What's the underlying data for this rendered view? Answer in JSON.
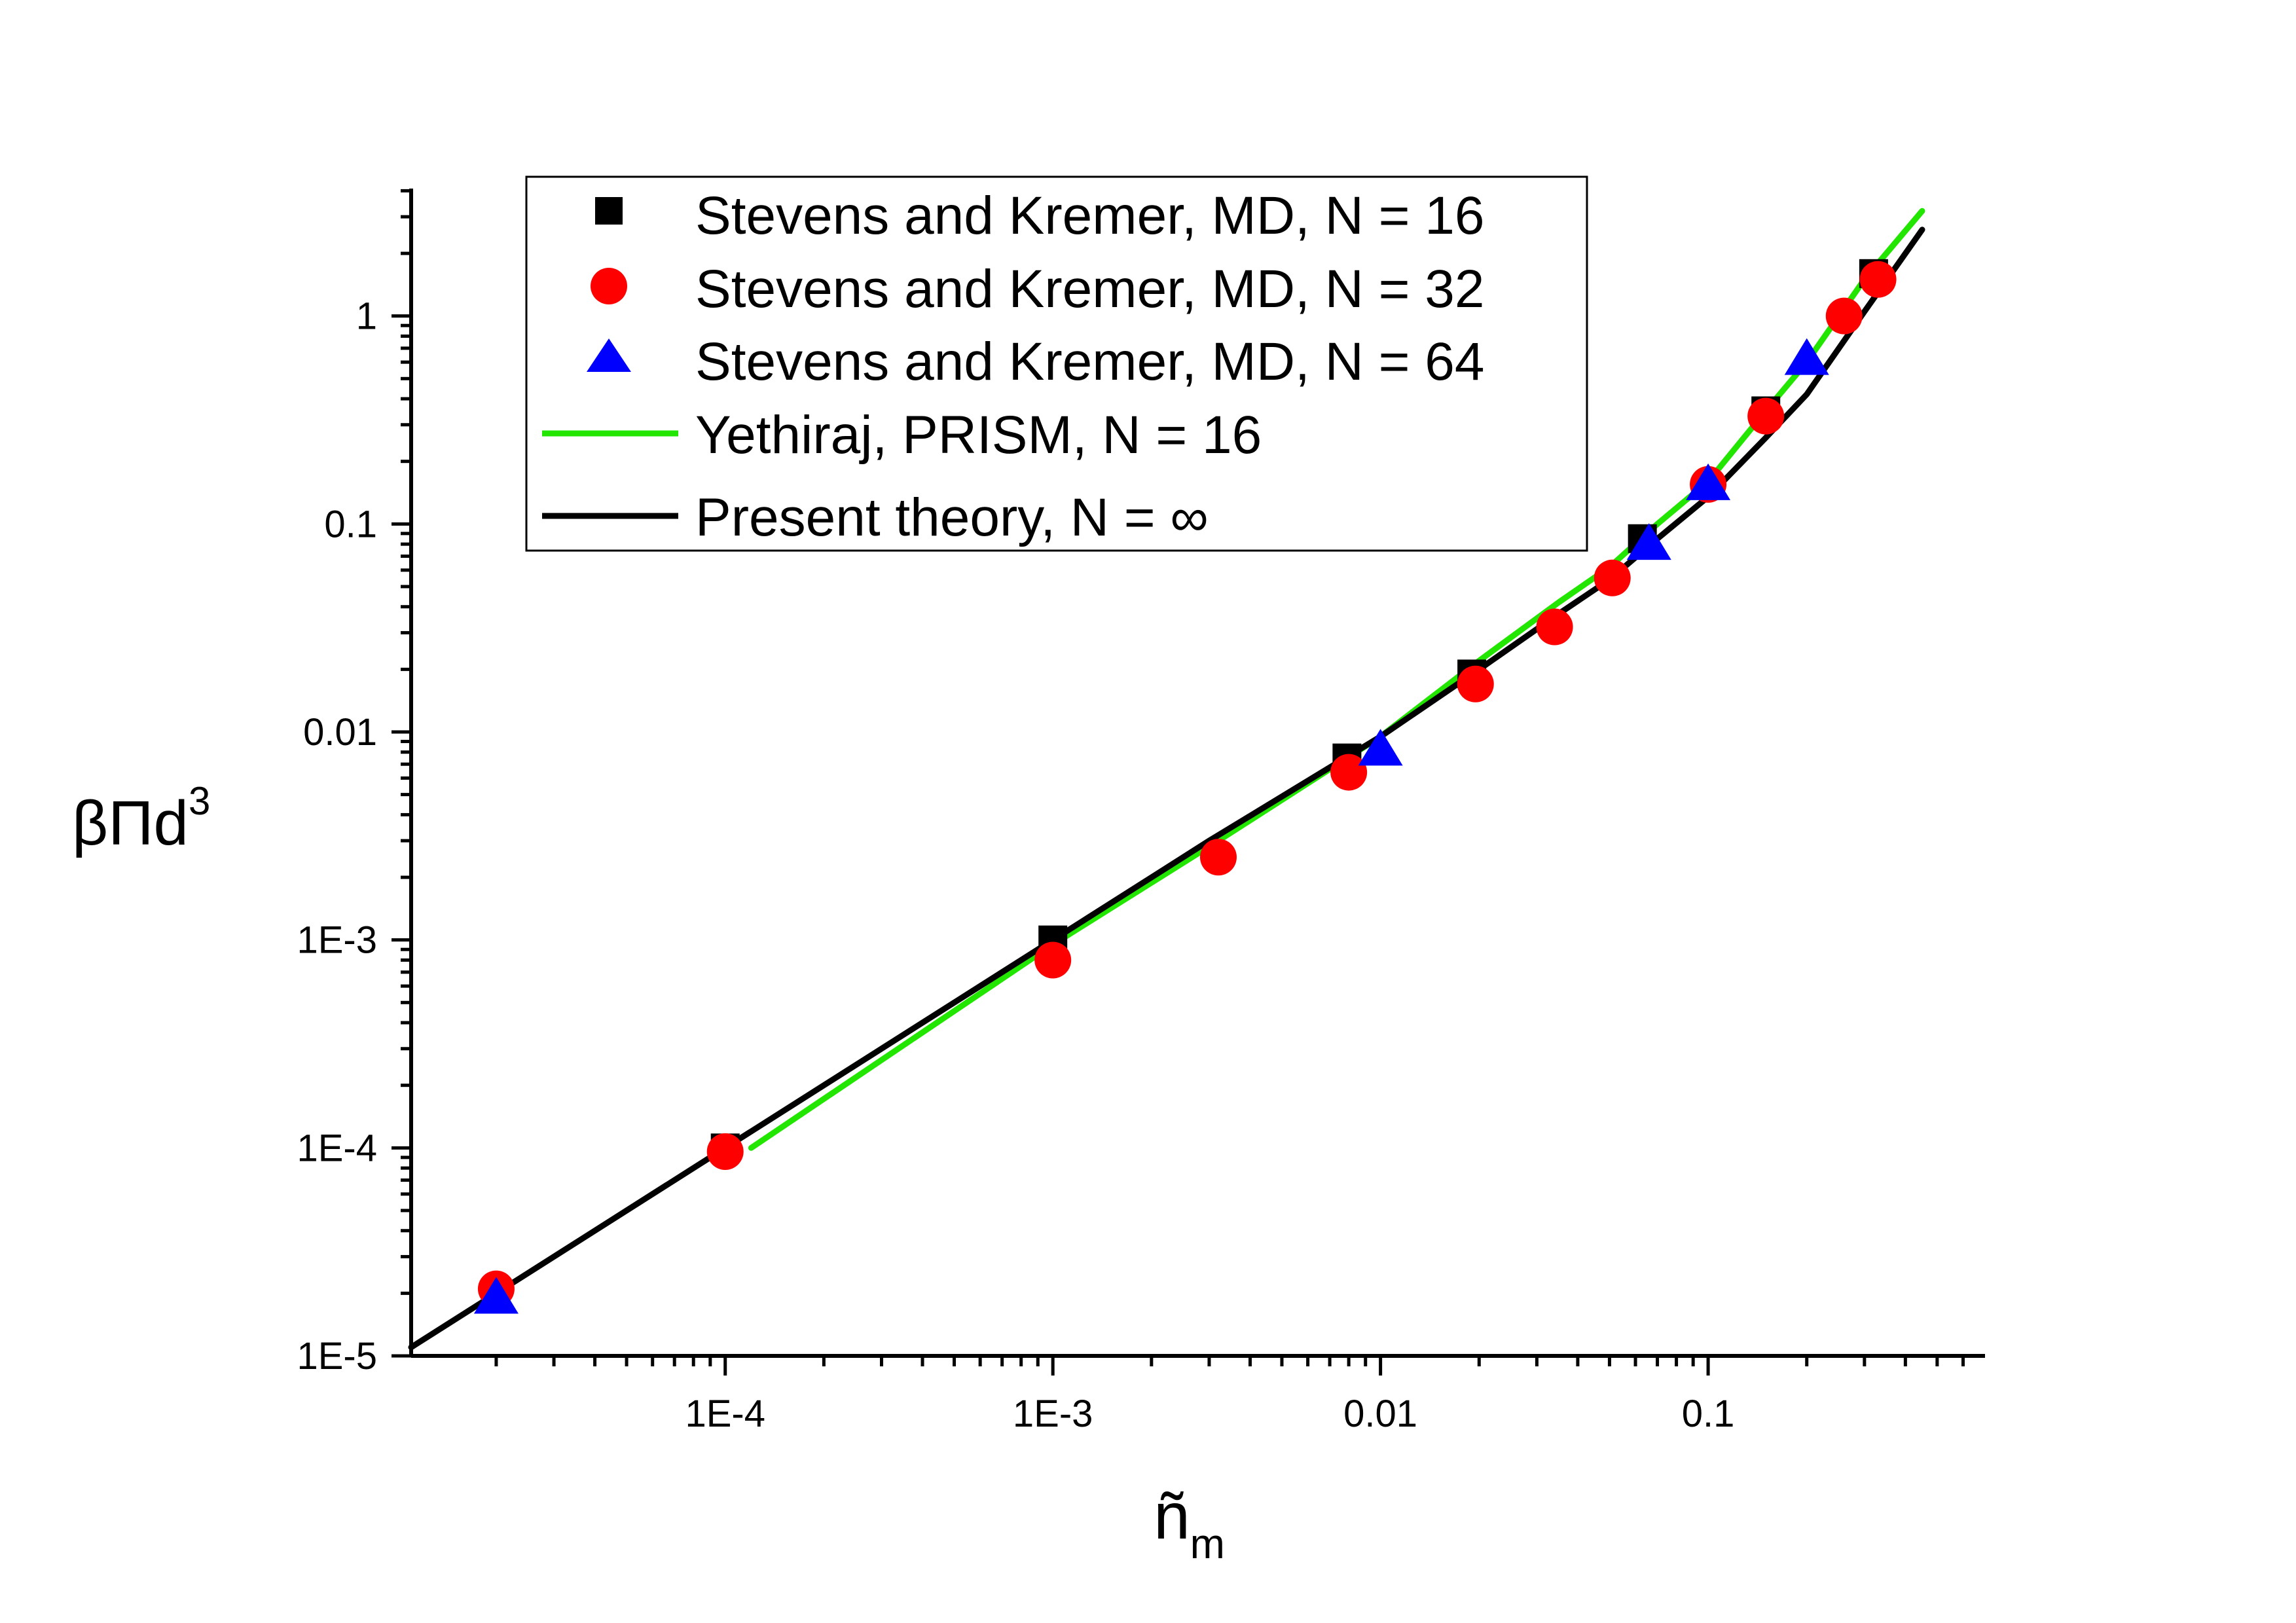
{
  "chart_data": {
    "type": "scatter",
    "xscale": "log",
    "yscale": "log",
    "xlim": [
      1.1e-05,
      0.7
    ],
    "ylim": [
      1e-05,
      4.1
    ],
    "xlabel": {
      "main": "ñ",
      "sub": "m"
    },
    "ylabel": {
      "main": "βΠd",
      "sup": "3"
    },
    "x_ticks": [
      {
        "value": 0.0001,
        "label": "1E-4"
      },
      {
        "value": 0.001,
        "label": "1E-3"
      },
      {
        "value": 0.01,
        "label": "0.01"
      },
      {
        "value": 0.1,
        "label": "0.1"
      }
    ],
    "y_ticks": [
      {
        "value": 1e-05,
        "label": "1E-5"
      },
      {
        "value": 0.0001,
        "label": "1E-4"
      },
      {
        "value": 0.001,
        "label": "1E-3"
      },
      {
        "value": 0.01,
        "label": "0.01"
      },
      {
        "value": 0.1,
        "label": "0.1"
      },
      {
        "value": 1,
        "label": "1"
      }
    ],
    "legend_position": "top-left",
    "series": [
      {
        "name": "Stevens and Kremer, MD, N = 16",
        "kind": "marker",
        "marker": "square",
        "color": "#000000",
        "points": [
          [
            0.0001,
            0.0001
          ],
          [
            0.001,
            0.001
          ],
          [
            0.0079,
            0.0075
          ],
          [
            0.019,
            0.019
          ],
          [
            0.063,
            0.085
          ],
          [
            0.15,
            0.35
          ],
          [
            0.32,
            1.6
          ]
        ]
      },
      {
        "name": "Stevens and Kremer, MD, N = 32",
        "kind": "marker",
        "marker": "circle",
        "color": "#ff0000",
        "points": [
          [
            2e-05,
            2.1e-05
          ],
          [
            0.0001,
            9.6e-05
          ],
          [
            0.001,
            0.0008
          ],
          [
            0.0032,
            0.0025
          ],
          [
            0.008,
            0.0064
          ],
          [
            0.0195,
            0.017
          ],
          [
            0.034,
            0.032
          ],
          [
            0.051,
            0.055
          ],
          [
            0.1,
            0.155
          ],
          [
            0.15,
            0.33
          ],
          [
            0.26,
            1.0
          ],
          [
            0.33,
            1.5
          ]
        ]
      },
      {
        "name": "Stevens and Kremer, MD, N = 64",
        "kind": "marker",
        "marker": "triangle",
        "color": "#0000ff",
        "points": [
          [
            2e-05,
            1.9e-05
          ],
          [
            0.01,
            0.0082
          ],
          [
            0.066,
            0.08
          ],
          [
            0.1,
            0.155
          ],
          [
            0.2,
            0.62
          ]
        ]
      },
      {
        "name": "Yethiraj, PRISM, N = 16",
        "kind": "line",
        "color": "#22e600",
        "points": [
          [
            0.00012,
            0.0001
          ],
          [
            0.001,
            0.00095
          ],
          [
            0.0032,
            0.003
          ],
          [
            0.01,
            0.0095
          ],
          [
            0.02,
            0.022
          ],
          [
            0.035,
            0.042
          ],
          [
            0.05,
            0.062
          ],
          [
            0.07,
            0.1
          ],
          [
            0.1,
            0.16
          ],
          [
            0.15,
            0.35
          ],
          [
            0.2,
            0.6
          ],
          [
            0.3,
            1.5
          ],
          [
            0.45,
            3.2
          ]
        ]
      },
      {
        "name": "Present theory, N = ∞",
        "kind": "line",
        "color": "#000000",
        "points": [
          [
            1.1e-05,
            1.1e-05
          ],
          [
            0.0001,
            0.0001
          ],
          [
            0.001,
            0.001
          ],
          [
            0.003,
            0.003
          ],
          [
            0.01,
            0.0095
          ],
          [
            0.02,
            0.02
          ],
          [
            0.035,
            0.037
          ],
          [
            0.05,
            0.054
          ],
          [
            0.07,
            0.085
          ],
          [
            0.1,
            0.135
          ],
          [
            0.15,
            0.26
          ],
          [
            0.2,
            0.42
          ],
          [
            0.3,
            1.05
          ],
          [
            0.45,
            2.6
          ]
        ]
      }
    ]
  }
}
